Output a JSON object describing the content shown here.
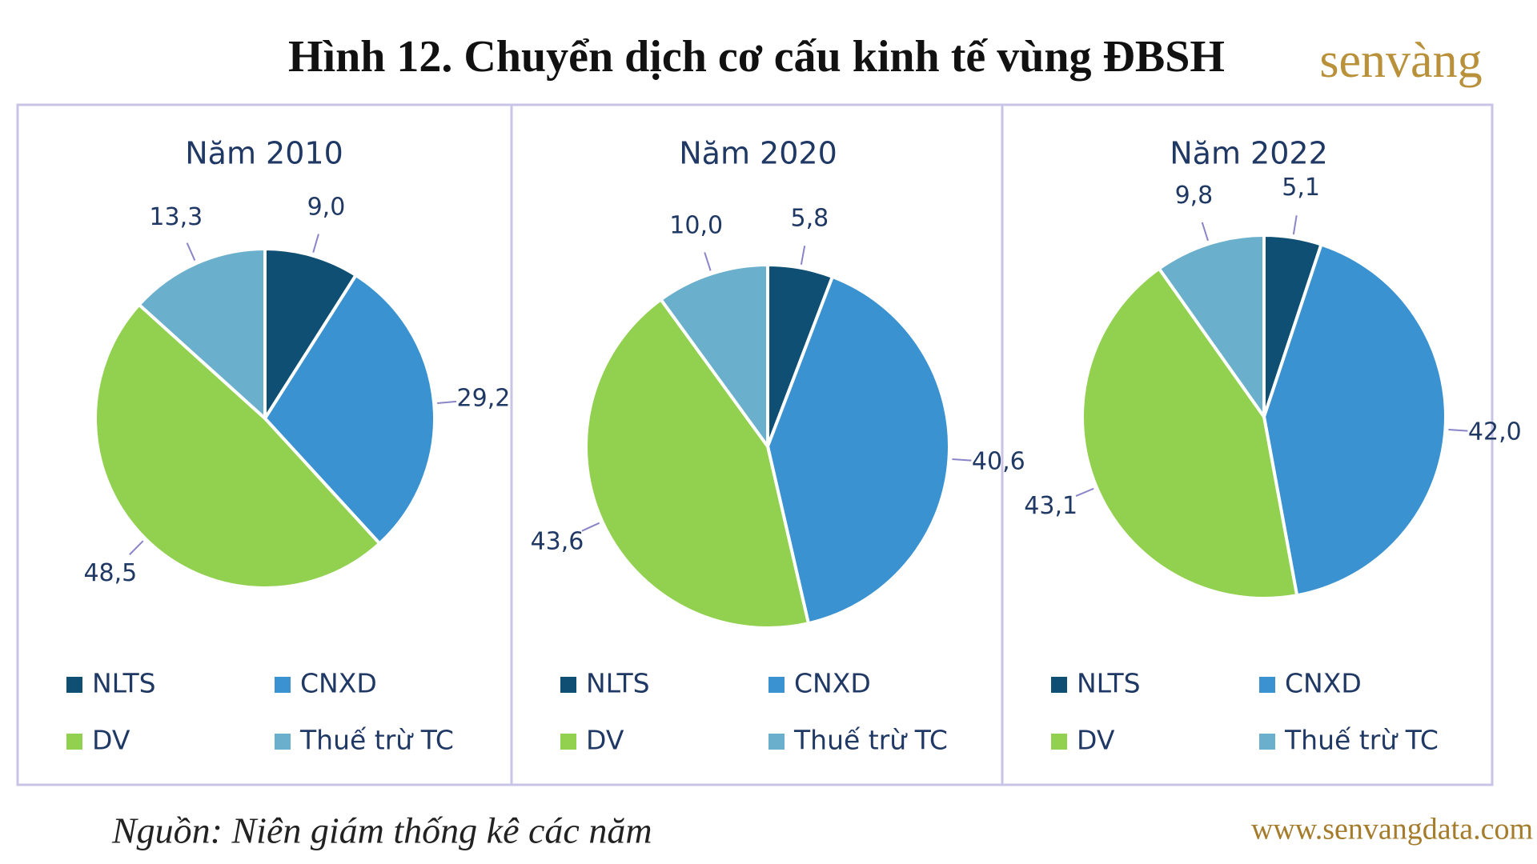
{
  "title": "Hình 12. Chuyển dịch cơ cấu kinh tế vùng ĐBSH",
  "logo": "senvàng",
  "source": "Nguồn: Niên giám thống kê các năm",
  "website": "www.senvangdata.com",
  "chart_data": [
    {
      "type": "pie",
      "title": "Năm 2010",
      "categories": [
        "NLTS",
        "CNXD",
        "DV",
        "Thuế trừ TC"
      ],
      "values": [
        9.0,
        29.2,
        48.5,
        13.3
      ],
      "value_labels": [
        "9,0",
        "29,2",
        "48,5",
        "13,3"
      ],
      "colors": [
        "#0e4f73",
        "#3a92d0",
        "#92d050",
        "#6aafcb"
      ]
    },
    {
      "type": "pie",
      "title": "Năm 2020",
      "categories": [
        "NLTS",
        "CNXD",
        "DV",
        "Thuế trừ TC"
      ],
      "values": [
        5.8,
        40.6,
        43.6,
        10.0
      ],
      "value_labels": [
        "5,8",
        "40,6",
        "43,6",
        "10,0"
      ],
      "colors": [
        "#0e4f73",
        "#3a92d0",
        "#92d050",
        "#6aafcb"
      ]
    },
    {
      "type": "pie",
      "title": "Năm 2022",
      "categories": [
        "NLTS",
        "CNXD",
        "DV",
        "Thuế trừ TC"
      ],
      "values": [
        5.1,
        42.0,
        43.1,
        9.8
      ],
      "value_labels": [
        "5,1",
        "42,0",
        "43,1",
        "9,8"
      ],
      "colors": [
        "#0e4f73",
        "#3a92d0",
        "#92d050",
        "#6aafcb"
      ]
    }
  ]
}
